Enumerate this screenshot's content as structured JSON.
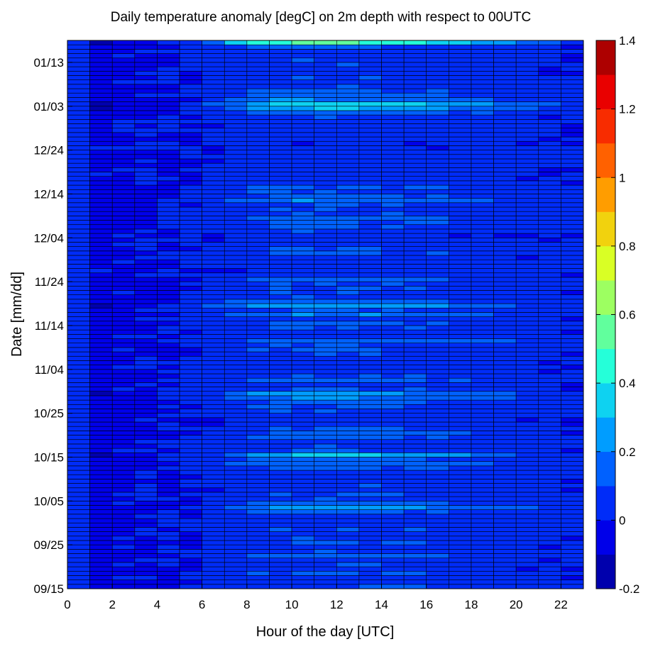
{
  "chart_data": {
    "type": "heatmap",
    "title": "Daily temperature anomaly [degC] on 2m depth with respect to 00UTC",
    "xlabel": "Hour of the day [UTC]",
    "ylabel": "Date [mm/dd]",
    "x_range": [
      0,
      23
    ],
    "x_ticks": [
      "0",
      "2",
      "4",
      "6",
      "8",
      "10",
      "12",
      "14",
      "16",
      "18",
      "20",
      "22"
    ],
    "y_ticks": [
      "09/15",
      "09/25",
      "10/05",
      "10/15",
      "10/25",
      "11/04",
      "11/14",
      "11/24",
      "12/04",
      "12/14",
      "12/24",
      "01/03",
      "01/13"
    ],
    "rows_per_day": 1,
    "n_days": 125,
    "clim": [
      -0.2,
      1.4
    ],
    "colorbar": {
      "ticks": [
        "-0.2",
        "0",
        "0.2",
        "0.4",
        "0.6",
        "0.8",
        "1",
        "1.2",
        "1.4"
      ],
      "n_levels": 16,
      "colormap": "jet"
    },
    "colors": [
      "#00008f",
      "#0000ef",
      "#004fff",
      "#00afff",
      "#1fffdf",
      "#7fff7f",
      "#dfff1f",
      "#ffaf00",
      "#ff4f00",
      "#ef0000",
      "#8f0000"
    ],
    "profile_hours": [
      0,
      1,
      2,
      3,
      4,
      5,
      6,
      7,
      8,
      9,
      10,
      11,
      12,
      13,
      14,
      15,
      16,
      17,
      18,
      19,
      20,
      21,
      22
    ],
    "profile_value": [
      0.0,
      -0.08,
      -0.03,
      -0.02,
      0.0,
      0.02,
      0.06,
      0.12,
      0.16,
      0.19,
      0.2,
      0.2,
      0.2,
      0.19,
      0.18,
      0.17,
      0.15,
      0.13,
      0.11,
      0.09,
      0.07,
      0.05,
      0.03
    ],
    "daily_strength": [
      0.55,
      0.35,
      0.42,
      0.6,
      0.3,
      0.48,
      0.38,
      0.9,
      0.5,
      0.33,
      0.62,
      0.4,
      0.35,
      0.52,
      0.28,
      0.45,
      0.36,
      0.58,
      1.25,
      0.72,
      0.4,
      0.55,
      0.3,
      0.45,
      0.35,
      0.3,
      0.38,
      0.65,
      0.95,
      0.72,
      1.55,
      0.5,
      0.45,
      0.35,
      0.6,
      0.7,
      0.55,
      0.2,
      0.25,
      0.35,
      0.45,
      0.55,
      0.62,
      0.98,
      1.3,
      0.5,
      0.45,
      0.72,
      0.48,
      0.3,
      0.2,
      0.15,
      0.35,
      0.45,
      0.55,
      0.48,
      0.95,
      0.4,
      0.3,
      0.55,
      0.65,
      0.35,
      1.0,
      0.55,
      1.35,
      0.7,
      0.4,
      0.45,
      0.5,
      0.55,
      0.75,
      0.3,
      0.2,
      0.25,
      0.35,
      0.3,
      0.6,
      0.5,
      0.4,
      0.25,
      0.15,
      0.45,
      0.55,
      0.6,
      0.65,
      0.5,
      0.45,
      0.55,
      0.9,
      0.7,
      0.5,
      0.6,
      0.3,
      0.25,
      0.2,
      0.15,
      0.25,
      0.35,
      0.3,
      0.2,
      0.15,
      0.1,
      0.2,
      0.15,
      0.2,
      0.3,
      0.25,
      0.45,
      0.9,
      1.5,
      1.75,
      0.95,
      0.6,
      0.65,
      0.4,
      0.35,
      0.45,
      0.3,
      0.35,
      0.4,
      0.45,
      0.35,
      0.4,
      0.6,
      2.6
    ]
  }
}
